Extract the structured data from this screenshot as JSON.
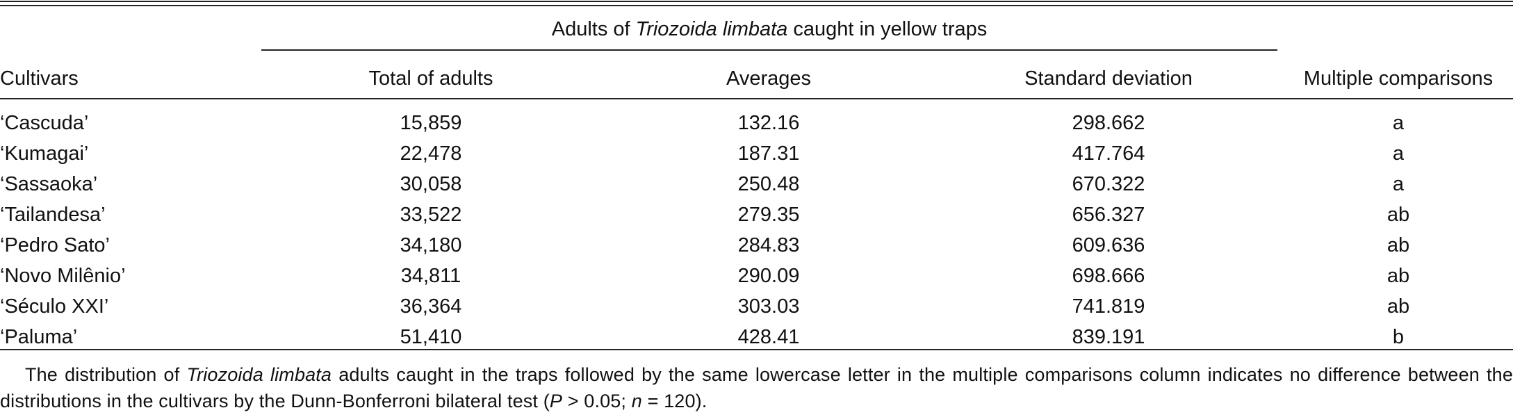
{
  "table": {
    "spanner": {
      "prefix": "Adults of ",
      "species": "Triozoida limbata",
      "suffix": " caught in yellow traps"
    },
    "headers": {
      "cultivars": "Cultivars",
      "total": "Total of adults",
      "averages": "Averages",
      "sd": "Standard deviation",
      "multiple": "Multiple comparisons"
    },
    "rows": [
      {
        "cultivar": "‘Cascuda’",
        "total": "15,859",
        "average": "132.16",
        "sd": "298.662",
        "mc": "a"
      },
      {
        "cultivar": "‘Kumagai’",
        "total": "22,478",
        "average": "187.31",
        "sd": "417.764",
        "mc": "a"
      },
      {
        "cultivar": "‘Sassaoka’",
        "total": "30,058",
        "average": "250.48",
        "sd": "670.322",
        "mc": "a"
      },
      {
        "cultivar": "‘Tailandesa’",
        "total": "33,522",
        "average": "279.35",
        "sd": "656.327",
        "mc": "ab"
      },
      {
        "cultivar": "‘Pedro Sato’",
        "total": "34,180",
        "average": "284.83",
        "sd": "609.636",
        "mc": "ab"
      },
      {
        "cultivar": "‘Novo Milênio’",
        "total": "34,811",
        "average": "290.09",
        "sd": "698.666",
        "mc": "ab"
      },
      {
        "cultivar": "‘Século XXI’",
        "total": "36,364",
        "average": "303.03",
        "sd": "741.819",
        "mc": "ab"
      },
      {
        "cultivar": "‘Paluma’",
        "total": "51,410",
        "average": "428.41",
        "sd": "839.191",
        "mc": "b"
      }
    ]
  },
  "note": {
    "part1": "The distribution of ",
    "species": "Triozoida limbata",
    "part2": " adults caught in the traps followed by the same lowercase letter in the multiple comparisons column indicates no difference between the distributions in the cultivars by the Dunn-Bonferroni bilateral test (",
    "p": "P",
    "part3": " > 0.05; ",
    "n": "n",
    "part4": " = 120)."
  }
}
